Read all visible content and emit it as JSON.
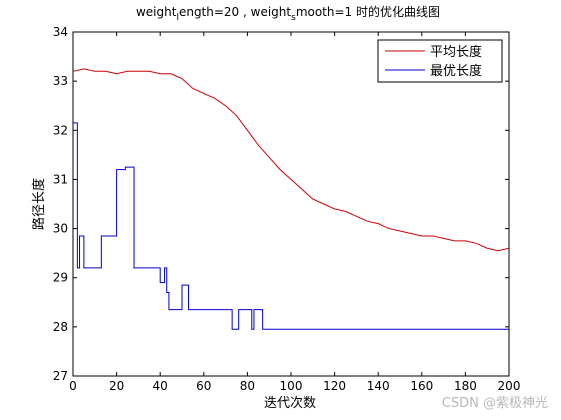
{
  "chart_data": {
    "type": "line",
    "title": {
      "part1": "weight",
      "sub1": "l",
      "part2": "ength=20 , weight",
      "sub2": "s",
      "part3": "mooth=1 时的优化曲线图"
    },
    "xlabel": "迭代次数",
    "ylabel": "路径长度",
    "xlim": [
      0,
      200
    ],
    "ylim": [
      27,
      34
    ],
    "xticks": [
      0,
      20,
      40,
      60,
      80,
      100,
      120,
      140,
      160,
      180,
      200
    ],
    "yticks": [
      27,
      28,
      29,
      30,
      31,
      32,
      33,
      34
    ],
    "grid": false,
    "legend_position": "top-right",
    "series": [
      {
        "name": "平均长度",
        "color": "#cc0000",
        "points": [
          [
            0,
            33.2
          ],
          [
            5,
            33.25
          ],
          [
            10,
            33.2
          ],
          [
            15,
            33.2
          ],
          [
            20,
            33.15
          ],
          [
            25,
            33.2
          ],
          [
            30,
            33.2
          ],
          [
            35,
            33.2
          ],
          [
            40,
            33.15
          ],
          [
            45,
            33.15
          ],
          [
            50,
            33.05
          ],
          [
            55,
            32.85
          ],
          [
            60,
            32.75
          ],
          [
            65,
            32.65
          ],
          [
            70,
            32.5
          ],
          [
            75,
            32.3
          ],
          [
            80,
            32.0
          ],
          [
            85,
            31.7
          ],
          [
            90,
            31.45
          ],
          [
            95,
            31.2
          ],
          [
            100,
            31.0
          ],
          [
            105,
            30.8
          ],
          [
            110,
            30.6
          ],
          [
            115,
            30.5
          ],
          [
            120,
            30.4
          ],
          [
            125,
            30.35
          ],
          [
            130,
            30.25
          ],
          [
            135,
            30.15
          ],
          [
            140,
            30.1
          ],
          [
            145,
            30.0
          ],
          [
            150,
            29.95
          ],
          [
            155,
            29.9
          ],
          [
            160,
            29.85
          ],
          [
            165,
            29.85
          ],
          [
            170,
            29.8
          ],
          [
            175,
            29.75
          ],
          [
            180,
            29.75
          ],
          [
            185,
            29.7
          ],
          [
            190,
            29.6
          ],
          [
            195,
            29.55
          ],
          [
            200,
            29.6
          ]
        ]
      },
      {
        "name": "最优长度",
        "color": "#0000cc",
        "points": [
          [
            0,
            32.15
          ],
          [
            2,
            32.15
          ],
          [
            2,
            29.2
          ],
          [
            3,
            29.2
          ],
          [
            3,
            29.85
          ],
          [
            5,
            29.85
          ],
          [
            5,
            29.2
          ],
          [
            13,
            29.2
          ],
          [
            13,
            29.85
          ],
          [
            20,
            29.85
          ],
          [
            20,
            31.2
          ],
          [
            24,
            31.2
          ],
          [
            24,
            31.25
          ],
          [
            28,
            31.25
          ],
          [
            28,
            29.2
          ],
          [
            40,
            29.2
          ],
          [
            40,
            28.9
          ],
          [
            42,
            28.9
          ],
          [
            42,
            29.2
          ],
          [
            43,
            29.2
          ],
          [
            43,
            28.7
          ],
          [
            44,
            28.7
          ],
          [
            44,
            28.35
          ],
          [
            50,
            28.35
          ],
          [
            50,
            28.85
          ],
          [
            53,
            28.85
          ],
          [
            53,
            28.35
          ],
          [
            73,
            28.35
          ],
          [
            73,
            27.95
          ],
          [
            76,
            27.95
          ],
          [
            76,
            28.35
          ],
          [
            82,
            28.35
          ],
          [
            82,
            27.95
          ],
          [
            83,
            27.95
          ],
          [
            83,
            28.35
          ],
          [
            87,
            28.35
          ],
          [
            87,
            27.95
          ],
          [
            200,
            27.95
          ]
        ]
      }
    ]
  },
  "watermark": "CSDN @紫极神光"
}
